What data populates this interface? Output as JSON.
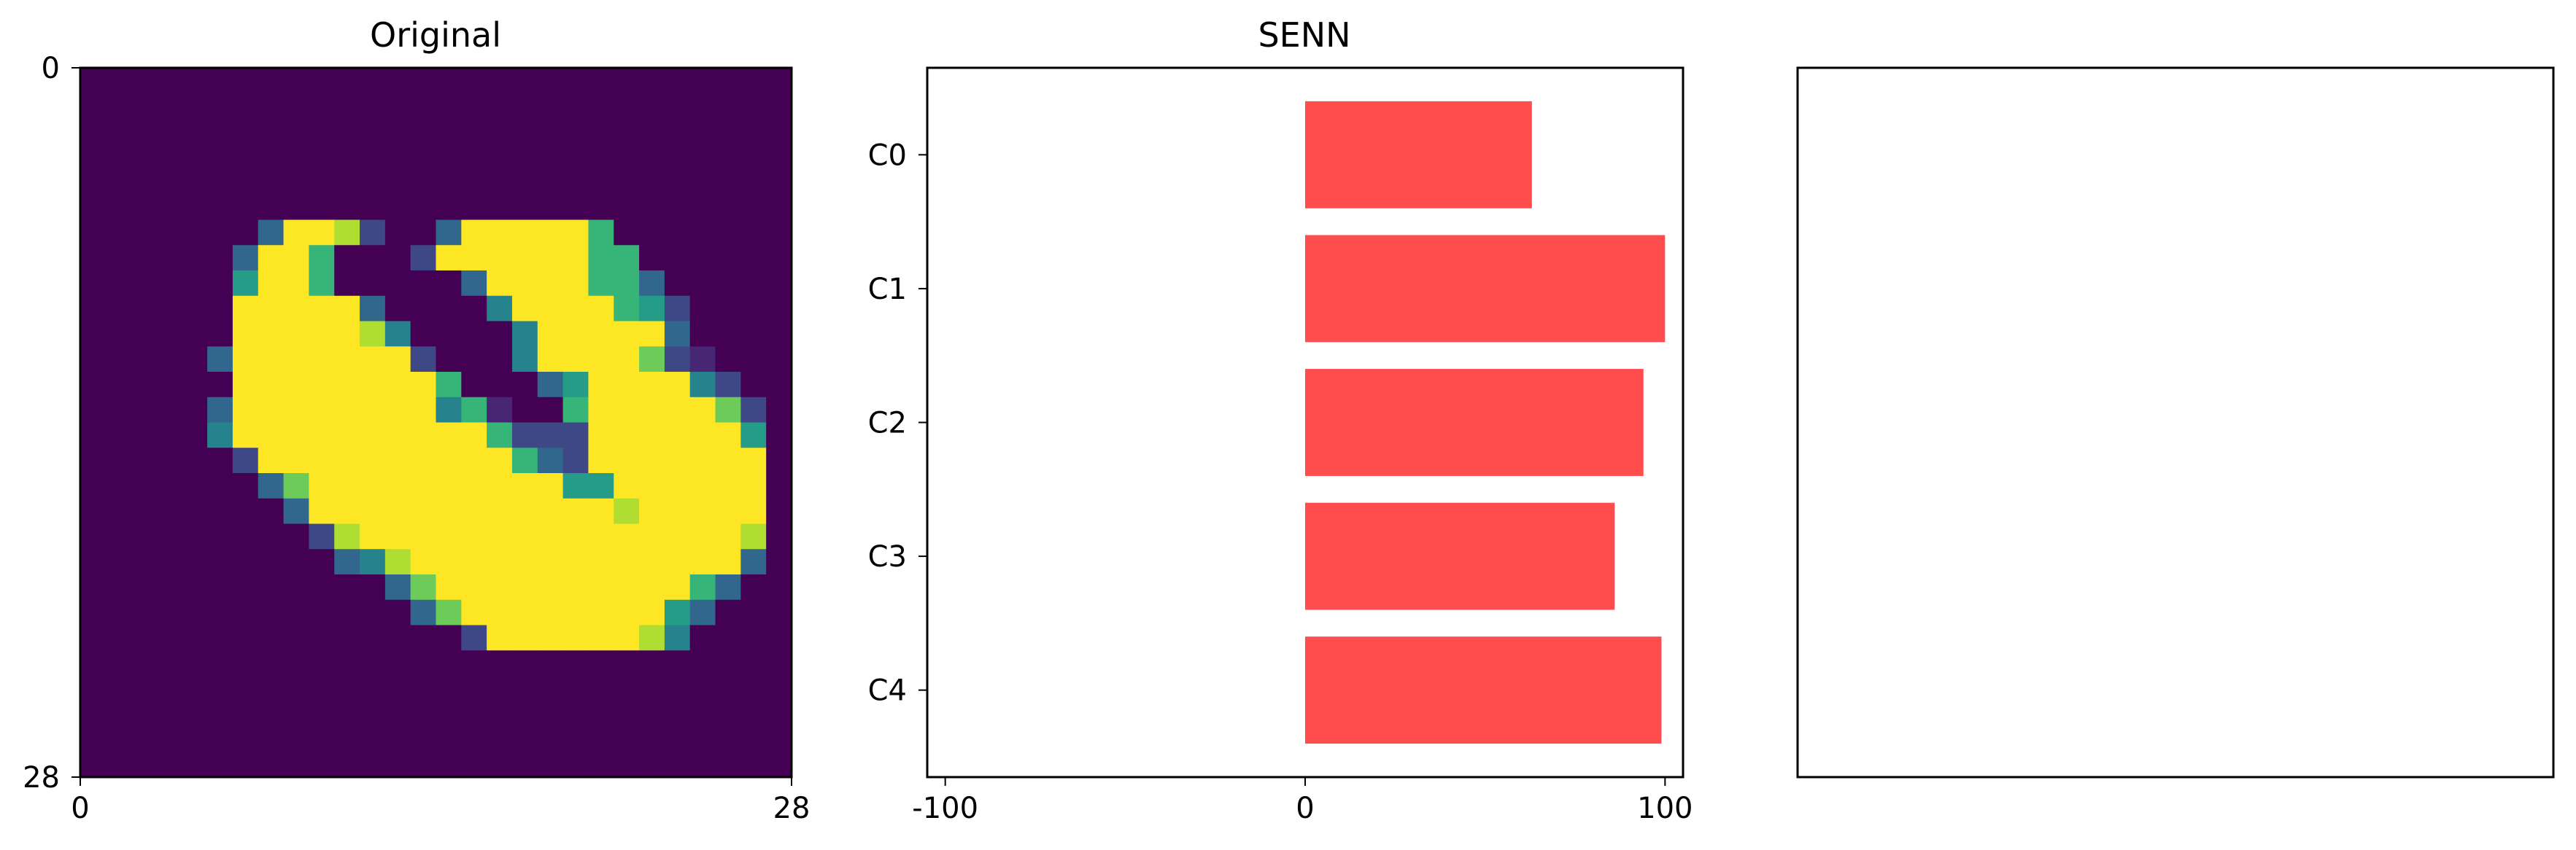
{
  "colors": {
    "bar": "#ff4d4d",
    "axes_edge": "#000000",
    "viridis_low": "#440154",
    "viridis_high": "#fde725"
  },
  "chart_data": [
    {
      "type": "heatmap",
      "title": "Original",
      "xticks": [
        "0",
        "28"
      ],
      "yticks": [
        "0",
        "28"
      ],
      "xlim": [
        0,
        28
      ],
      "ylim": [
        28,
        0
      ],
      "colormap": "viridis",
      "grid": false,
      "rows": [
        "0000000000000000000000000000",
        "0000000000000000000000000000",
        "0000000000000000000000000000",
        "0000000000000000000000000000",
        "0000000000000000000000000000",
        "0000000000000000000000000000",
        "0000000399820039999960000000",
        "0000003996000299999966000000",
        "0000005996000003999966300000",
        "0000009999930000499996520000",
        "0000009999984000049999930000",
        "0000039999999200049999721000",
        "0000009999999960003599994200",
        "0000039999999946100699999720",
        "0000049999999999622299999950",
        "0000002999999999963299999990",
        "0000000379999999999559999990",
        "0000000039999999999998999990",
        "0000000002899999999999999980",
        "0000000000348999999999999930",
        "0000000000003799999999996300",
        "0000000000000379999999953000",
        "0000000000000002999999840000",
        "0000000000000000000000000000",
        "0000000000000000000000000000",
        "0000000000000000000000000000",
        "0000000000000000000000000000",
        "0000000000000000000000000000"
      ]
    },
    {
      "type": "bar",
      "orientation": "horizontal",
      "title": "SENN",
      "categories": [
        "C0",
        "C1",
        "C2",
        "C3",
        "C4"
      ],
      "values": [
        63,
        100,
        94,
        86,
        99
      ],
      "xlim": [
        -105,
        105
      ],
      "xticks": [
        "-100",
        "0",
        "100"
      ],
      "xtick_values": [
        -100,
        0,
        100
      ],
      "grid": false
    },
    {
      "type": "bar",
      "title": "",
      "values": []
    }
  ]
}
